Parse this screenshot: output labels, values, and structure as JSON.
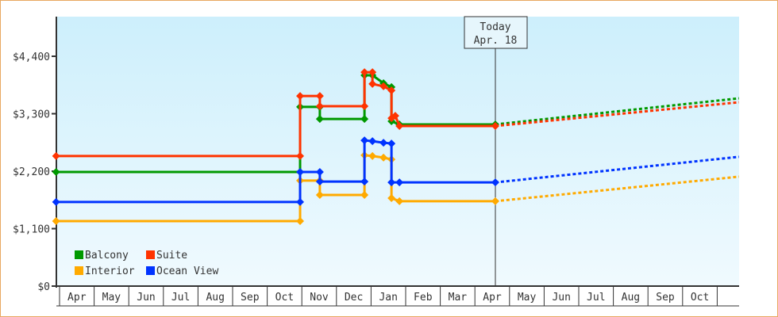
{
  "chart_data": {
    "type": "line",
    "title": "",
    "xlabel": "",
    "ylabel": "",
    "ylim": [
      0,
      5150
    ],
    "yticks": [
      {
        "value": 0,
        "label": "$0"
      },
      {
        "value": 1100,
        "label": "$1,100"
      },
      {
        "value": 2200,
        "label": "$2,200"
      },
      {
        "value": 3300,
        "label": "$3,300"
      },
      {
        "value": 4400,
        "label": "$4,400"
      }
    ],
    "x_unit": "months since start of first April",
    "xlim": [
      -0.1,
      19.6
    ],
    "month_labels": [
      "Apr",
      "May",
      "Jun",
      "Jul",
      "Aug",
      "Sep",
      "Oct",
      "Nov",
      "Dec",
      "Jan",
      "Feb",
      "Mar",
      "Apr",
      "May",
      "Jun",
      "Jul",
      "Aug",
      "Sep",
      "Oct",
      ""
    ],
    "today": {
      "x": 12.57,
      "label_line1": "Today",
      "label_line2": "Apr. 18"
    },
    "legend_position": "bottom-left",
    "series": [
      {
        "name": "Balcony",
        "color": "#009900",
        "points": [
          [
            -0.1,
            2185
          ],
          [
            6.95,
            2185
          ],
          [
            6.95,
            3430
          ],
          [
            7.52,
            3430
          ],
          [
            7.52,
            3200
          ],
          [
            8.81,
            3200
          ],
          [
            8.81,
            4035
          ],
          [
            9.04,
            4035
          ],
          [
            9.36,
            3885
          ],
          [
            9.59,
            3810
          ],
          [
            9.59,
            3155
          ],
          [
            9.82,
            3095
          ],
          [
            12.59,
            3095
          ]
        ],
        "projection": [
          [
            12.59,
            3095
          ],
          [
            19.63,
            3595
          ]
        ]
      },
      {
        "name": "Suite",
        "color": "#ff3300",
        "points": [
          [
            -0.1,
            2490
          ],
          [
            6.95,
            2490
          ],
          [
            6.95,
            3640
          ],
          [
            7.52,
            3640
          ],
          [
            7.52,
            3445
          ],
          [
            8.81,
            3445
          ],
          [
            8.81,
            4095
          ],
          [
            9.04,
            4095
          ],
          [
            9.04,
            3870
          ],
          [
            9.36,
            3825
          ],
          [
            9.59,
            3745
          ],
          [
            9.59,
            3215
          ],
          [
            9.7,
            3260
          ],
          [
            9.82,
            3065
          ],
          [
            12.59,
            3065
          ]
        ],
        "projection": [
          [
            12.59,
            3065
          ],
          [
            19.63,
            3520
          ]
        ]
      },
      {
        "name": "Interior",
        "color": "#ffaa00",
        "points": [
          [
            -0.1,
            1245
          ],
          [
            6.95,
            1245
          ],
          [
            6.95,
            2020
          ],
          [
            7.52,
            2020
          ],
          [
            7.52,
            1745
          ],
          [
            8.81,
            1745
          ],
          [
            8.81,
            2505
          ],
          [
            9.04,
            2490
          ],
          [
            9.36,
            2460
          ],
          [
            9.59,
            2425
          ],
          [
            9.59,
            1685
          ],
          [
            9.82,
            1625
          ],
          [
            12.59,
            1625
          ]
        ],
        "projection": [
          [
            12.59,
            1625
          ],
          [
            19.63,
            2095
          ]
        ]
      },
      {
        "name": "Ocean View",
        "color": "#0033ff",
        "points": [
          [
            -0.1,
            1610
          ],
          [
            6.95,
            1610
          ],
          [
            6.95,
            2185
          ],
          [
            7.52,
            2185
          ],
          [
            7.52,
            2000
          ],
          [
            8.81,
            2000
          ],
          [
            8.81,
            2790
          ],
          [
            9.04,
            2775
          ],
          [
            9.36,
            2745
          ],
          [
            9.59,
            2730
          ],
          [
            9.59,
            1985
          ],
          [
            9.82,
            1985
          ],
          [
            12.59,
            1985
          ]
        ],
        "projection": [
          [
            12.59,
            1985
          ],
          [
            19.63,
            2475
          ]
        ]
      }
    ]
  }
}
